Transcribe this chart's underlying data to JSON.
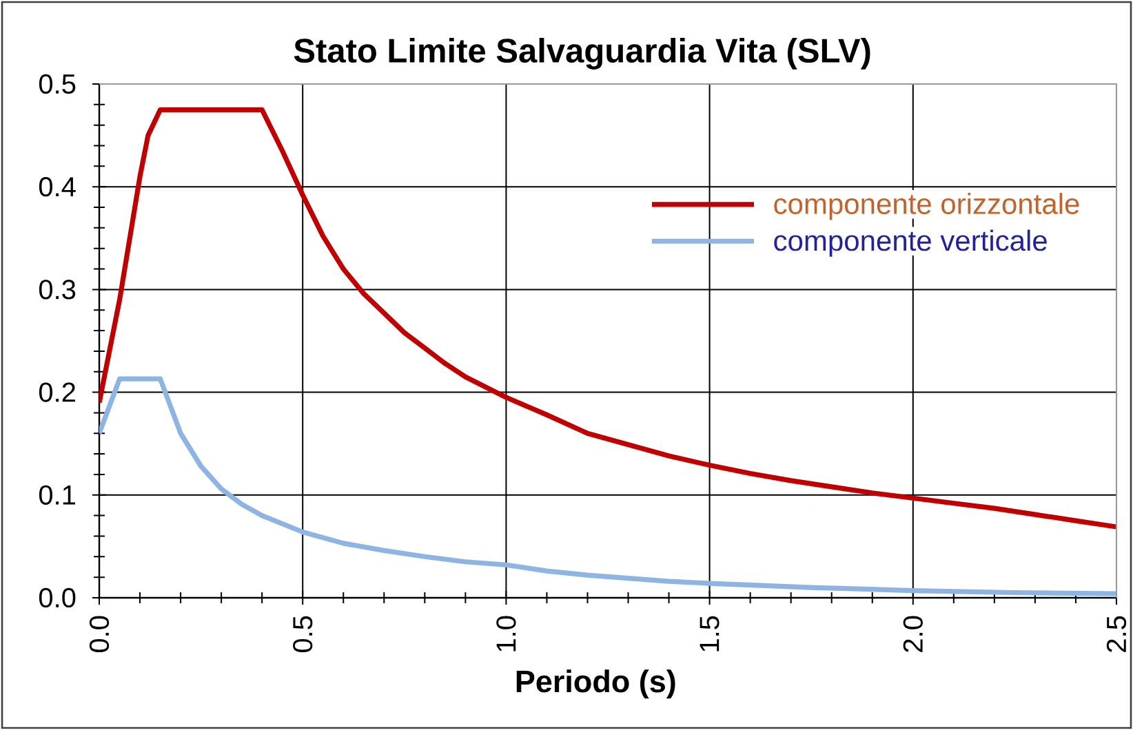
{
  "chart_data": {
    "type": "line",
    "title": "Stato Limite Salvaguardia Vita (SLV)",
    "xlabel": "Periodo (s)",
    "xlim": [
      0,
      2.5
    ],
    "ylim": [
      0,
      0.5
    ],
    "xticks": [
      {
        "value": 0,
        "label": "0.0"
      },
      {
        "value": 0.1,
        "label": null
      },
      {
        "value": 0.2,
        "label": null
      },
      {
        "value": 0.3,
        "label": null
      },
      {
        "value": 0.4,
        "label": null
      },
      {
        "value": 0.5,
        "label": "0.5"
      },
      {
        "value": 0.6,
        "label": null
      },
      {
        "value": 0.7,
        "label": null
      },
      {
        "value": 0.8,
        "label": null
      },
      {
        "value": 0.9,
        "label": null
      },
      {
        "value": 1.0,
        "label": "1.0"
      },
      {
        "value": 1.1,
        "label": null
      },
      {
        "value": 1.2,
        "label": null
      },
      {
        "value": 1.3,
        "label": null
      },
      {
        "value": 1.4,
        "label": null
      },
      {
        "value": 1.5,
        "label": "1.5"
      },
      {
        "value": 1.6,
        "label": null
      },
      {
        "value": 1.7,
        "label": null
      },
      {
        "value": 1.8,
        "label": null
      },
      {
        "value": 1.9,
        "label": null
      },
      {
        "value": 2.0,
        "label": "2.0"
      },
      {
        "value": 2.1,
        "label": null
      },
      {
        "value": 2.2,
        "label": null
      },
      {
        "value": 2.3,
        "label": null
      },
      {
        "value": 2.4,
        "label": null
      },
      {
        "value": 2.5,
        "label": "2.5"
      }
    ],
    "yticks": [
      {
        "value": 0,
        "label": "0.0"
      },
      {
        "value": 0.02,
        "label": null
      },
      {
        "value": 0.04,
        "label": null
      },
      {
        "value": 0.06,
        "label": null
      },
      {
        "value": 0.08,
        "label": null
      },
      {
        "value": 0.1,
        "label": "0.1"
      },
      {
        "value": 0.12,
        "label": null
      },
      {
        "value": 0.14,
        "label": null
      },
      {
        "value": 0.16,
        "label": null
      },
      {
        "value": 0.18,
        "label": null
      },
      {
        "value": 0.2,
        "label": "0.2"
      },
      {
        "value": 0.22,
        "label": null
      },
      {
        "value": 0.24,
        "label": null
      },
      {
        "value": 0.26,
        "label": null
      },
      {
        "value": 0.28,
        "label": null
      },
      {
        "value": 0.3,
        "label": "0.3"
      },
      {
        "value": 0.32,
        "label": null
      },
      {
        "value": 0.34,
        "label": null
      },
      {
        "value": 0.36,
        "label": null
      },
      {
        "value": 0.38,
        "label": null
      },
      {
        "value": 0.4,
        "label": "0.4"
      },
      {
        "value": 0.42,
        "label": null
      },
      {
        "value": 0.44,
        "label": null
      },
      {
        "value": 0.46,
        "label": null
      },
      {
        "value": 0.48,
        "label": null
      },
      {
        "value": 0.5,
        "label": "0.5"
      }
    ],
    "grid": true,
    "legend": "top right",
    "series": [
      {
        "name": "componente orizzontale",
        "color": "#c00000",
        "x": [
          0,
          0.05,
          0.1,
          0.12,
          0.15,
          0.4,
          0.45,
          0.5,
          0.55,
          0.6,
          0.65,
          0.7,
          0.75,
          0.8,
          0.85,
          0.9,
          1.0,
          1.1,
          1.2,
          1.3,
          1.4,
          1.5,
          1.6,
          1.7,
          1.8,
          1.9,
          2.0,
          2.1,
          2.2,
          2.3,
          2.4,
          2.5
        ],
        "values": [
          0.19,
          0.29,
          0.41,
          0.45,
          0.475,
          0.475,
          0.435,
          0.392,
          0.352,
          0.32,
          0.296,
          0.277,
          0.258,
          0.243,
          0.228,
          0.215,
          0.195,
          0.178,
          0.16,
          0.149,
          0.138,
          0.129,
          0.121,
          0.114,
          0.108,
          0.102,
          0.097,
          0.092,
          0.087,
          0.081,
          0.075,
          0.069
        ]
      },
      {
        "name": "componente verticale",
        "color": "#8db4e2",
        "x": [
          0,
          0.05,
          0.15,
          0.2,
          0.25,
          0.3,
          0.35,
          0.4,
          0.5,
          0.6,
          0.7,
          0.8,
          0.9,
          1.0,
          1.1,
          1.2,
          1.3,
          1.4,
          1.5,
          1.75,
          2.0,
          2.25,
          2.5
        ],
        "values": [
          0.16,
          0.213,
          0.213,
          0.16,
          0.128,
          0.106,
          0.091,
          0.08,
          0.064,
          0.053,
          0.046,
          0.04,
          0.035,
          0.032,
          0.026,
          0.022,
          0.019,
          0.016,
          0.014,
          0.01,
          0.007,
          0.005,
          0.004
        ]
      }
    ]
  }
}
